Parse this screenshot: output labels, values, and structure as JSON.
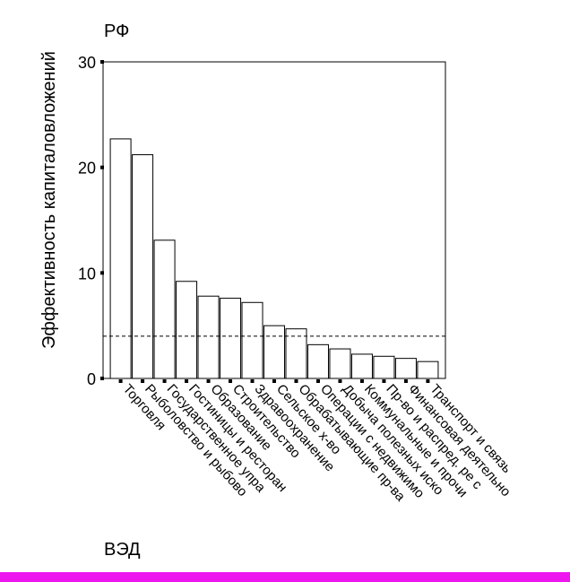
{
  "chart_data": {
    "type": "bar",
    "title": "РФ",
    "xlabel": "ВЭД",
    "ylabel": "Эффективность капиталовложений",
    "ylim": [
      0,
      30
    ],
    "yticks": [
      0,
      10,
      20,
      30
    ],
    "reference_line": 4.0,
    "categories": [
      "Торговля",
      "Рыболовство и рыбово",
      "Государственное упра",
      "Гостиницы и ресторан",
      "Образование",
      "Строительство",
      "Здравоохранение",
      "Сельское х-во",
      "Обрабатывающие пр-ва",
      "Операции с недвижимо",
      "Добыча полезных иско",
      "Коммунальные и прочи",
      "Пр-во и распред. ре с",
      "Финансовая деятельно",
      "Транспорт и связь"
    ],
    "values": [
      22.7,
      21.2,
      13.1,
      9.2,
      7.8,
      7.6,
      7.2,
      5.0,
      4.7,
      3.2,
      2.8,
      2.3,
      2.1,
      1.9,
      1.6
    ],
    "bar_fill": "#ffffff",
    "bar_stroke": "#000000",
    "grid": false
  },
  "decor": {
    "bottom_bar_color": "#ee16ee"
  }
}
